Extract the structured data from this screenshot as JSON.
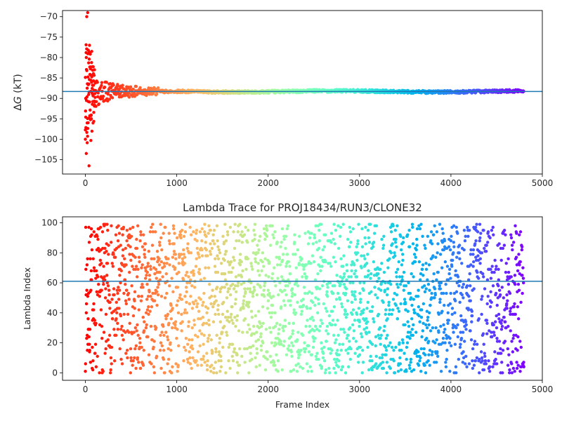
{
  "chart_data": [
    {
      "type": "scatter",
      "title": "",
      "xlabel": "",
      "ylabel": "ΔG (kT)",
      "xlim": [
        -250,
        5000
      ],
      "ylim": [
        -108.5,
        -68.5
      ],
      "xticks": [
        0,
        1000,
        2000,
        3000,
        4000,
        5000
      ],
      "yticks": [
        -105,
        -100,
        -95,
        -90,
        -85,
        -80,
        -75,
        -70
      ],
      "hline": -88.3,
      "colormap": "rainbow (red at frame 0 → violet at frame 4800)",
      "frames": 4800,
      "description_of_trend": "ΔG converges from a wide spread (-106 to -69) in the first ~100 frames to about -88.3 kT",
      "sample_points": [
        {
          "x": 0,
          "y": -100.0
        },
        {
          "x": 5,
          "y": -90.0
        },
        {
          "x": 10,
          "y": -80.0
        },
        {
          "x": 15,
          "y": -70.0
        },
        {
          "x": 20,
          "y": -96.0
        },
        {
          "x": 25,
          "y": -69.0
        },
        {
          "x": 40,
          "y": -106.5
        },
        {
          "x": 45,
          "y": -77.0
        },
        {
          "x": 60,
          "y": -100.3
        },
        {
          "x": 70,
          "y": -78.5
        },
        {
          "x": 100,
          "y": -83.0
        },
        {
          "x": 200,
          "y": -87.0
        },
        {
          "x": 400,
          "y": -88.5
        },
        {
          "x": 800,
          "y": -88.7
        },
        {
          "x": 1500,
          "y": -88.3
        },
        {
          "x": 2500,
          "y": -88.3
        },
        {
          "x": 3500,
          "y": -88.2
        },
        {
          "x": 4800,
          "y": -88.5
        }
      ]
    },
    {
      "type": "scatter",
      "title": "Lambda Trace for PROJ18434/RUN3/CLONE32",
      "xlabel": "Frame Index",
      "ylabel": "Lambda Index",
      "xlim": [
        -250,
        5000
      ],
      "ylim": [
        -5,
        104
      ],
      "xticks": [
        0,
        1000,
        2000,
        3000,
        4000,
        5000
      ],
      "yticks": [
        0,
        20,
        40,
        60,
        80,
        100
      ],
      "hline": 61,
      "colormap": "rainbow (red at frame 0 → violet at frame 4800)",
      "frames": 4800,
      "lambda_range": [
        0,
        99
      ],
      "description_of_trend": "Lambda index values spread uniformly between 0 and 99 across all frames"
    }
  ],
  "colors": {
    "hline": "#1f77b4",
    "axis": "#000000",
    "text": "#262626"
  }
}
